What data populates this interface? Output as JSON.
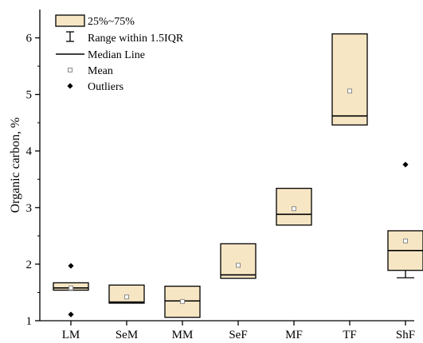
{
  "chart_data": {
    "type": "box",
    "ylabel": "Organic carbon, %",
    "ylim": [
      1,
      6.5
    ],
    "yticks": [
      1,
      2,
      3,
      4,
      5,
      6
    ],
    "categories": [
      "LM",
      "SeM",
      "MM",
      "SeF",
      "MF",
      "TF",
      "ShF"
    ],
    "boxes": [
      {
        "category": "LM",
        "q1": 1.54,
        "median": 1.58,
        "q3": 1.67,
        "mean": 1.58,
        "whisker_low": null,
        "whisker_high": null,
        "outliers": [
          1.97,
          1.11
        ]
      },
      {
        "category": "SeM",
        "q1": 1.31,
        "median": 1.33,
        "q3": 1.63,
        "mean": 1.42,
        "whisker_low": null,
        "whisker_high": null,
        "outliers": []
      },
      {
        "category": "MM",
        "q1": 1.06,
        "median": 1.35,
        "q3": 1.61,
        "mean": 1.34,
        "whisker_low": null,
        "whisker_high": null,
        "outliers": []
      },
      {
        "category": "SeF",
        "q1": 1.75,
        "median": 1.81,
        "q3": 2.36,
        "mean": 1.98,
        "whisker_low": null,
        "whisker_high": null,
        "outliers": []
      },
      {
        "category": "MF",
        "q1": 2.69,
        "median": 2.88,
        "q3": 3.34,
        "mean": 2.98,
        "whisker_low": null,
        "whisker_high": null,
        "outliers": []
      },
      {
        "category": "TF",
        "q1": 4.46,
        "median": 4.62,
        "q3": 6.07,
        "mean": 5.06,
        "whisker_low": null,
        "whisker_high": null,
        "outliers": []
      },
      {
        "category": "ShF",
        "q1": 1.89,
        "median": 2.24,
        "q3": 2.59,
        "mean": 2.41,
        "whisker_low": 1.76,
        "whisker_high": null,
        "outliers": [
          3.76
        ]
      }
    ],
    "legend": {
      "placement": "top-left",
      "items": [
        {
          "key": "box",
          "label": "25%~75%"
        },
        {
          "key": "whisker",
          "label": "Range within 1.5IQR"
        },
        {
          "key": "median",
          "label": "Median Line"
        },
        {
          "key": "mean",
          "label": "Mean"
        },
        {
          "key": "outlier",
          "label": "Outliers"
        }
      ]
    },
    "colors": {
      "box_fill": "#f7e6c4",
      "stroke": "#000000",
      "mean_marker": "#8a8a8a"
    }
  }
}
